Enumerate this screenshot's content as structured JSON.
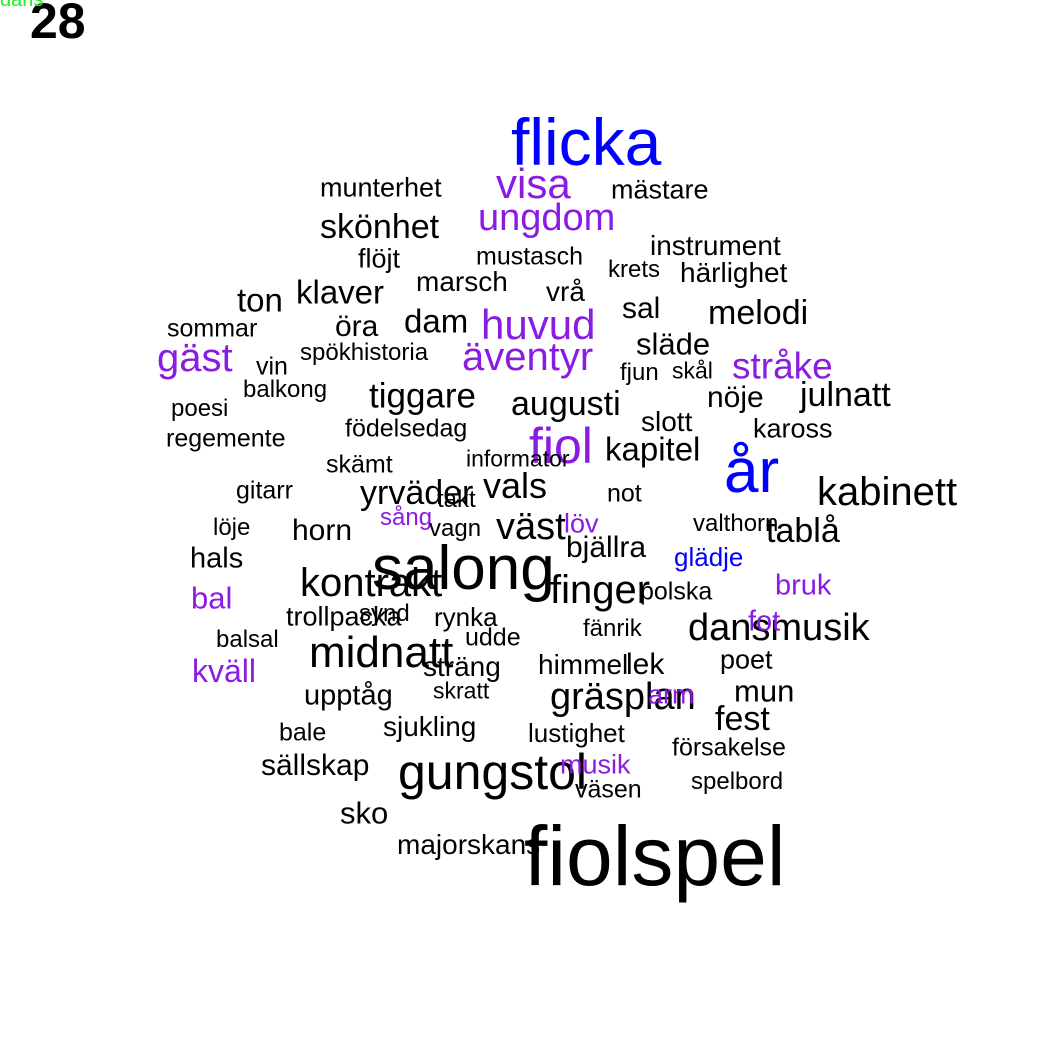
{
  "page_number": "28",
  "palette": {
    "black": "#000000",
    "purple": "#8a1be2",
    "blue": "#0000ff",
    "green": "#22ee22"
  },
  "words": [
    {
      "text": "flicka",
      "color": "blue"
    },
    {
      "text": "munterhet",
      "color": "black"
    },
    {
      "text": "visa",
      "color": "purple"
    },
    {
      "text": "mästare",
      "color": "black"
    },
    {
      "text": "ungdom",
      "color": "purple"
    },
    {
      "text": "skönhet",
      "color": "black"
    },
    {
      "text": "instrument",
      "color": "black"
    },
    {
      "text": "flöjt",
      "color": "black"
    },
    {
      "text": "mustasch",
      "color": "black"
    },
    {
      "text": "krets",
      "color": "black"
    },
    {
      "text": "härlighet",
      "color": "black"
    },
    {
      "text": "marsch",
      "color": "black"
    },
    {
      "text": "klaver",
      "color": "black"
    },
    {
      "text": "ton",
      "color": "black"
    },
    {
      "text": "vrå",
      "color": "black"
    },
    {
      "text": "sal",
      "color": "black"
    },
    {
      "text": "melodi",
      "color": "black"
    },
    {
      "text": "sommar",
      "color": "black"
    },
    {
      "text": "öra",
      "color": "black"
    },
    {
      "text": "dam",
      "color": "black"
    },
    {
      "text": "huvud",
      "color": "purple"
    },
    {
      "text": "släde",
      "color": "black"
    },
    {
      "text": "gäst",
      "color": "purple"
    },
    {
      "text": "vin",
      "color": "black"
    },
    {
      "text": "spökhistoria",
      "color": "black"
    },
    {
      "text": "äventyr",
      "color": "purple"
    },
    {
      "text": "stråke",
      "color": "purple"
    },
    {
      "text": "fjun",
      "color": "black"
    },
    {
      "text": "skål",
      "color": "black"
    },
    {
      "text": "balkong",
      "color": "black"
    },
    {
      "text": "tiggare",
      "color": "black"
    },
    {
      "text": "augusti",
      "color": "black"
    },
    {
      "text": "nöje",
      "color": "black"
    },
    {
      "text": "julnatt",
      "color": "black"
    },
    {
      "text": "poesi",
      "color": "black"
    },
    {
      "text": "slott",
      "color": "black"
    },
    {
      "text": "födelsedag",
      "color": "black"
    },
    {
      "text": "kaross",
      "color": "black"
    },
    {
      "text": "regemente",
      "color": "black"
    },
    {
      "text": "fiol",
      "color": "purple"
    },
    {
      "text": "kapitel",
      "color": "black"
    },
    {
      "text": "år",
      "color": "blue"
    },
    {
      "text": "skämt",
      "color": "black"
    },
    {
      "text": "informator",
      "color": "black"
    },
    {
      "text": "vals",
      "color": "black"
    },
    {
      "text": "gitarr",
      "color": "black"
    },
    {
      "text": "yrväder",
      "color": "black"
    },
    {
      "text": "takt",
      "color": "black"
    },
    {
      "text": "not",
      "color": "black"
    },
    {
      "text": "kabinett",
      "color": "black"
    },
    {
      "text": "sång",
      "color": "purple"
    },
    {
      "text": "löje",
      "color": "black"
    },
    {
      "text": "horn",
      "color": "black"
    },
    {
      "text": "vagn",
      "color": "black"
    },
    {
      "text": "väst",
      "color": "black"
    },
    {
      "text": "löv",
      "color": "purple"
    },
    {
      "text": "valthorn",
      "color": "black"
    },
    {
      "text": "tablå",
      "color": "black"
    },
    {
      "text": "hals",
      "color": "black"
    },
    {
      "text": "bjällra",
      "color": "black"
    },
    {
      "text": "salong",
      "color": "black"
    },
    {
      "text": "glädje",
      "color": "blue"
    },
    {
      "text": "kontrakt",
      "color": "black"
    },
    {
      "text": "bal",
      "color": "purple"
    },
    {
      "text": "finger",
      "color": "black"
    },
    {
      "text": "bruk",
      "color": "purple"
    },
    {
      "text": "polska",
      "color": "black"
    },
    {
      "text": "trollpacka",
      "color": "black"
    },
    {
      "text": "synd",
      "color": "black"
    },
    {
      "text": "rynka",
      "color": "black"
    },
    {
      "text": "dansmusik",
      "color": "black"
    },
    {
      "text": "fot",
      "color": "purple"
    },
    {
      "text": "fänrik",
      "color": "black"
    },
    {
      "text": "balsal",
      "color": "black"
    },
    {
      "text": "udde",
      "color": "black"
    },
    {
      "text": "midnatt",
      "color": "black"
    },
    {
      "text": "kväll",
      "color": "purple"
    },
    {
      "text": "sträng",
      "color": "black"
    },
    {
      "text": "himmel",
      "color": "black"
    },
    {
      "text": "lek",
      "color": "black"
    },
    {
      "text": "poet",
      "color": "black"
    },
    {
      "text": "upptåg",
      "color": "black"
    },
    {
      "text": "skratt",
      "color": "black"
    },
    {
      "text": "gräsplan",
      "color": "black"
    },
    {
      "text": "arm",
      "color": "purple"
    },
    {
      "text": "mun",
      "color": "black"
    },
    {
      "text": "fest",
      "color": "black"
    },
    {
      "text": "bale",
      "color": "black"
    },
    {
      "text": "sjukling",
      "color": "black"
    },
    {
      "text": "lustighet",
      "color": "black"
    },
    {
      "text": "försakelse",
      "color": "black"
    },
    {
      "text": "sällskap",
      "color": "black"
    },
    {
      "text": "gungstol",
      "color": "black"
    },
    {
      "text": "musik",
      "color": "purple"
    },
    {
      "text": "väsen",
      "color": "black"
    },
    {
      "text": "spelbord",
      "color": "black"
    },
    {
      "text": "sko",
      "color": "black"
    },
    {
      "text": "majorskans",
      "color": "black"
    },
    {
      "text": "fiolspel",
      "color": "black"
    },
    {
      "text": "dans",
      "color": "green"
    }
  ]
}
